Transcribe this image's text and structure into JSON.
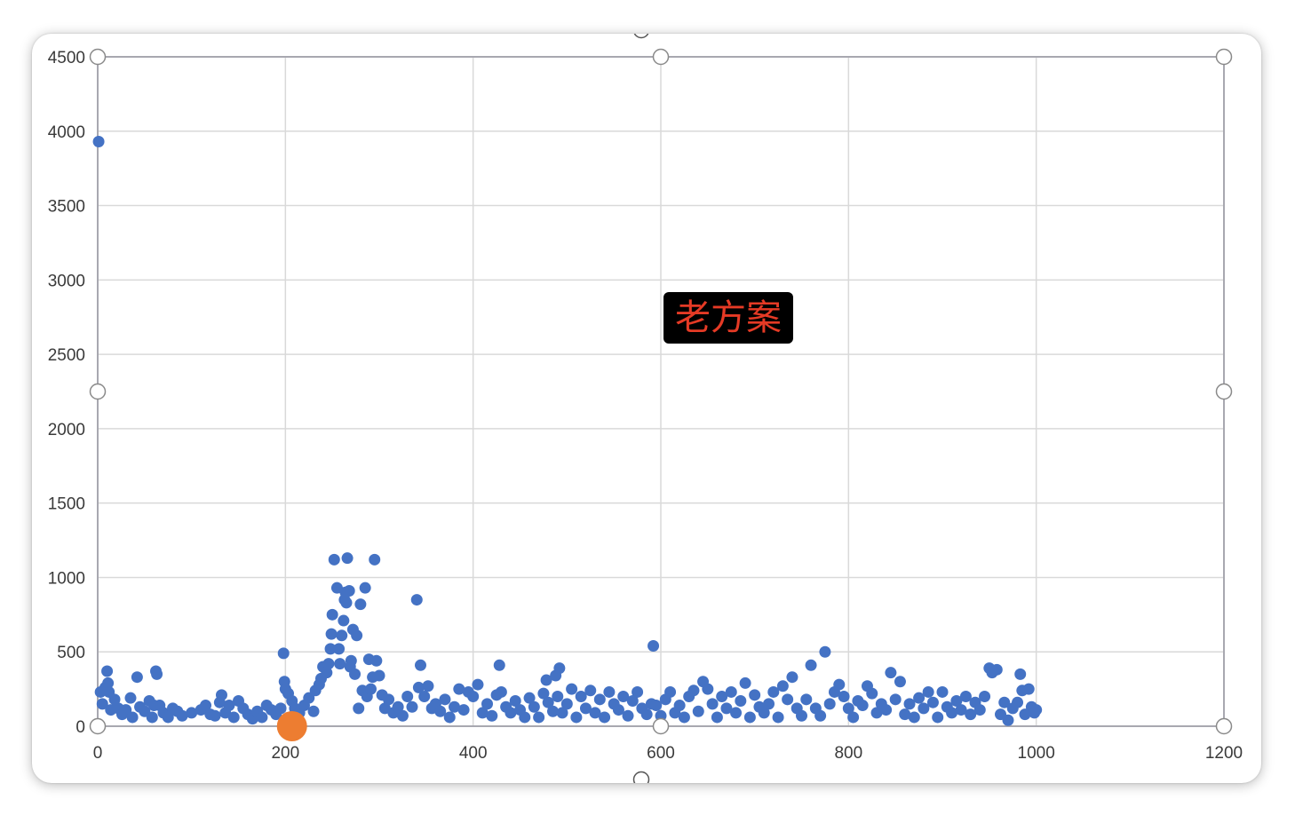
{
  "chart_data": {
    "type": "scatter",
    "title": "",
    "xlabel": "",
    "ylabel": "",
    "xlim": [
      0,
      1200
    ],
    "ylim": [
      0,
      4500
    ],
    "x_ticks": [
      "0",
      "200",
      "400",
      "600",
      "800",
      "1000",
      "1200"
    ],
    "y_ticks": [
      "0",
      "500",
      "1000",
      "1500",
      "2000",
      "2500",
      "3000",
      "3500",
      "4000",
      "4500"
    ],
    "grid": true,
    "legend": "none",
    "overlay_text": "老方案",
    "colors": {
      "series": "#4472c4",
      "highlight": "#ed7d31",
      "overlay_text": "#e53a25",
      "overlay_bg": "#000000"
    },
    "series": [
      {
        "color": "#4472c4",
        "points": [
          [
            1,
            3930
          ],
          [
            3,
            230
          ],
          [
            5,
            150
          ],
          [
            8,
            260
          ],
          [
            10,
            370
          ],
          [
            11,
            290
          ],
          [
            12,
            230
          ],
          [
            14,
            110
          ],
          [
            18,
            180
          ],
          [
            22,
            120
          ],
          [
            26,
            80
          ],
          [
            30,
            110
          ],
          [
            35,
            190
          ],
          [
            37,
            60
          ],
          [
            42,
            330
          ],
          [
            45,
            130
          ],
          [
            50,
            100
          ],
          [
            55,
            170
          ],
          [
            58,
            60
          ],
          [
            60,
            140
          ],
          [
            62,
            370
          ],
          [
            63,
            350
          ],
          [
            66,
            140
          ],
          [
            70,
            90
          ],
          [
            75,
            60
          ],
          [
            80,
            120
          ],
          [
            85,
            100
          ],
          [
            90,
            70
          ],
          [
            100,
            90
          ],
          [
            110,
            110
          ],
          [
            115,
            140
          ],
          [
            120,
            80
          ],
          [
            125,
            70
          ],
          [
            130,
            160
          ],
          [
            132,
            210
          ],
          [
            136,
            90
          ],
          [
            140,
            140
          ],
          [
            145,
            60
          ],
          [
            150,
            170
          ],
          [
            155,
            120
          ],
          [
            160,
            80
          ],
          [
            165,
            50
          ],
          [
            170,
            100
          ],
          [
            175,
            60
          ],
          [
            180,
            140
          ],
          [
            185,
            110
          ],
          [
            190,
            80
          ],
          [
            195,
            120
          ],
          [
            198,
            490
          ],
          [
            199,
            300
          ],
          [
            200,
            250
          ],
          [
            203,
            220
          ],
          [
            207,
            170
          ],
          [
            210,
            120
          ],
          [
            215,
            90
          ],
          [
            220,
            140
          ],
          [
            225,
            190
          ],
          [
            230,
            100
          ],
          [
            232,
            240
          ],
          [
            236,
            280
          ],
          [
            238,
            320
          ],
          [
            240,
            400
          ],
          [
            244,
            360
          ],
          [
            246,
            420
          ],
          [
            248,
            520
          ],
          [
            249,
            620
          ],
          [
            250,
            750
          ],
          [
            252,
            1120
          ],
          [
            255,
            930
          ],
          [
            257,
            520
          ],
          [
            258,
            420
          ],
          [
            260,
            610
          ],
          [
            262,
            710
          ],
          [
            263,
            850
          ],
          [
            264,
            900
          ],
          [
            265,
            830
          ],
          [
            266,
            1130
          ],
          [
            268,
            910
          ],
          [
            269,
            400
          ],
          [
            270,
            440
          ],
          [
            272,
            650
          ],
          [
            274,
            350
          ],
          [
            276,
            610
          ],
          [
            278,
            120
          ],
          [
            280,
            820
          ],
          [
            282,
            240
          ],
          [
            285,
            930
          ],
          [
            287,
            200
          ],
          [
            289,
            450
          ],
          [
            291,
            250
          ],
          [
            293,
            330
          ],
          [
            295,
            1120
          ],
          [
            297,
            440
          ],
          [
            300,
            340
          ],
          [
            303,
            210
          ],
          [
            306,
            120
          ],
          [
            310,
            180
          ],
          [
            315,
            90
          ],
          [
            320,
            130
          ],
          [
            325,
            70
          ],
          [
            330,
            200
          ],
          [
            335,
            130
          ],
          [
            340,
            850
          ],
          [
            342,
            260
          ],
          [
            344,
            410
          ],
          [
            348,
            200
          ],
          [
            352,
            270
          ],
          [
            356,
            120
          ],
          [
            360,
            150
          ],
          [
            365,
            100
          ],
          [
            370,
            180
          ],
          [
            375,
            60
          ],
          [
            380,
            130
          ],
          [
            385,
            250
          ],
          [
            390,
            110
          ],
          [
            395,
            230
          ],
          [
            400,
            200
          ],
          [
            405,
            280
          ],
          [
            410,
            90
          ],
          [
            415,
            150
          ],
          [
            420,
            70
          ],
          [
            425,
            210
          ],
          [
            428,
            410
          ],
          [
            430,
            230
          ],
          [
            435,
            130
          ],
          [
            440,
            90
          ],
          [
            445,
            170
          ],
          [
            450,
            110
          ],
          [
            455,
            60
          ],
          [
            460,
            190
          ],
          [
            465,
            130
          ],
          [
            470,
            60
          ],
          [
            475,
            220
          ],
          [
            478,
            310
          ],
          [
            480,
            160
          ],
          [
            485,
            100
          ],
          [
            488,
            340
          ],
          [
            490,
            200
          ],
          [
            492,
            390
          ],
          [
            495,
            90
          ],
          [
            500,
            150
          ],
          [
            505,
            250
          ],
          [
            510,
            60
          ],
          [
            515,
            200
          ],
          [
            520,
            120
          ],
          [
            525,
            240
          ],
          [
            530,
            90
          ],
          [
            535,
            180
          ],
          [
            540,
            60
          ],
          [
            545,
            230
          ],
          [
            550,
            150
          ],
          [
            555,
            110
          ],
          [
            560,
            200
          ],
          [
            565,
            70
          ],
          [
            570,
            170
          ],
          [
            575,
            230
          ],
          [
            580,
            120
          ],
          [
            585,
            80
          ],
          [
            590,
            150
          ],
          [
            592,
            540
          ],
          [
            595,
            140
          ],
          [
            600,
            70
          ],
          [
            605,
            180
          ],
          [
            610,
            230
          ],
          [
            615,
            90
          ],
          [
            620,
            140
          ],
          [
            625,
            60
          ],
          [
            630,
            200
          ],
          [
            635,
            240
          ],
          [
            640,
            100
          ],
          [
            645,
            300
          ],
          [
            650,
            250
          ],
          [
            655,
            150
          ],
          [
            660,
            60
          ],
          [
            665,
            200
          ],
          [
            670,
            120
          ],
          [
            675,
            230
          ],
          [
            680,
            90
          ],
          [
            685,
            170
          ],
          [
            690,
            290
          ],
          [
            695,
            60
          ],
          [
            700,
            210
          ],
          [
            705,
            130
          ],
          [
            710,
            90
          ],
          [
            715,
            150
          ],
          [
            720,
            230
          ],
          [
            725,
            60
          ],
          [
            730,
            270
          ],
          [
            735,
            180
          ],
          [
            740,
            330
          ],
          [
            745,
            120
          ],
          [
            750,
            70
          ],
          [
            755,
            180
          ],
          [
            760,
            410
          ],
          [
            765,
            120
          ],
          [
            770,
            70
          ],
          [
            775,
            500
          ],
          [
            780,
            150
          ],
          [
            785,
            230
          ],
          [
            790,
            280
          ],
          [
            795,
            200
          ],
          [
            800,
            120
          ],
          [
            805,
            60
          ],
          [
            810,
            170
          ],
          [
            815,
            140
          ],
          [
            820,
            270
          ],
          [
            825,
            220
          ],
          [
            830,
            90
          ],
          [
            835,
            150
          ],
          [
            840,
            110
          ],
          [
            845,
            360
          ],
          [
            850,
            180
          ],
          [
            855,
            300
          ],
          [
            860,
            80
          ],
          [
            865,
            150
          ],
          [
            870,
            60
          ],
          [
            875,
            190
          ],
          [
            880,
            120
          ],
          [
            885,
            230
          ],
          [
            890,
            160
          ],
          [
            895,
            60
          ],
          [
            900,
            230
          ],
          [
            905,
            130
          ],
          [
            910,
            90
          ],
          [
            915,
            170
          ],
          [
            920,
            110
          ],
          [
            925,
            200
          ],
          [
            930,
            80
          ],
          [
            935,
            160
          ],
          [
            940,
            110
          ],
          [
            945,
            200
          ],
          [
            950,
            390
          ],
          [
            953,
            360
          ],
          [
            958,
            380
          ],
          [
            962,
            80
          ],
          [
            966,
            160
          ],
          [
            970,
            40
          ],
          [
            975,
            120
          ],
          [
            980,
            160
          ],
          [
            983,
            350
          ],
          [
            985,
            240
          ],
          [
            988,
            80
          ],
          [
            992,
            250
          ],
          [
            995,
            130
          ],
          [
            998,
            90
          ],
          [
            1000,
            110
          ]
        ]
      },
      {
        "color": "#ed7d31",
        "points": [
          [
            207,
            0
          ]
        ]
      }
    ]
  }
}
